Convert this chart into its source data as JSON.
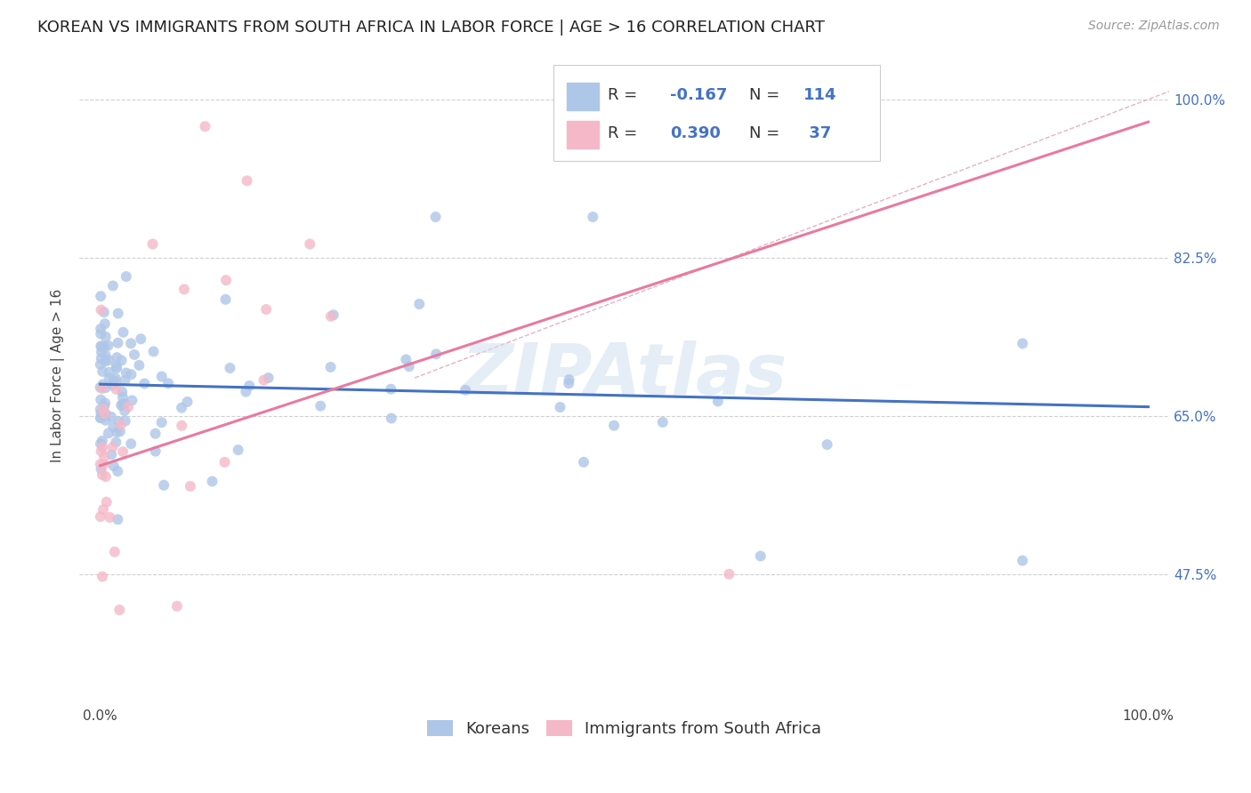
{
  "title": "KOREAN VS IMMIGRANTS FROM SOUTH AFRICA IN LABOR FORCE | AGE > 16 CORRELATION CHART",
  "source": "Source: ZipAtlas.com",
  "ylabel": "In Labor Force | Age > 16",
  "xlim": [
    -0.02,
    1.02
  ],
  "ylim": [
    0.33,
    1.06
  ],
  "y_tick_vals": [
    0.475,
    0.65,
    0.825,
    1.0
  ],
  "y_tick_labels": [
    "47.5%",
    "65.0%",
    "82.5%",
    "100.0%"
  ],
  "korean_R": "-0.167",
  "korean_N": "114",
  "sa_R": "0.390",
  "sa_N": "37",
  "korean_color": "#aec6e8",
  "sa_color": "#f5b8c8",
  "korean_line_color": "#4472c4",
  "sa_line_color": "#e87aa0",
  "diag_line_color": "#e0a0b0",
  "watermark": "ZIPAtlas",
  "background_color": "#ffffff",
  "legend_korean_label": "Koreans",
  "legend_sa_label": "Immigrants from South Africa",
  "title_fontsize": 13,
  "axis_label_fontsize": 11,
  "tick_fontsize": 11,
  "legend_fontsize": 13,
  "source_fontsize": 10,
  "korean_intercept": 0.685,
  "korean_slope": -0.025,
  "sa_intercept": 0.595,
  "sa_slope": 0.38
}
